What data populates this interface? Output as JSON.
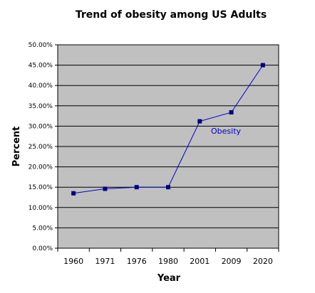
{
  "chart_data": {
    "type": "line",
    "title": "Trend of obesity among US Adults",
    "xlabel": "Year",
    "ylabel": "Percent",
    "categories": [
      "1960",
      "1971",
      "1976",
      "1980",
      "2001",
      "2009",
      "2020"
    ],
    "y_ticks": [
      "0.00%",
      "5.00%",
      "10.00%",
      "15.00%",
      "20.00%",
      "25.00%",
      "30.00%",
      "35.00%",
      "40.00%",
      "45.00%",
      "50.00%"
    ],
    "ylim": [
      0,
      50
    ],
    "grid": true,
    "series": [
      {
        "values": [
          13.5,
          14.6,
          15.0,
          15.0,
          31.2,
          33.4,
          45.0
        ]
      }
    ],
    "annotation": "Obesity",
    "colors": {
      "plot_background": "#c0c0c0",
      "line": "#0000cc",
      "annotation": "#0000cc",
      "grid": "#000000"
    }
  }
}
